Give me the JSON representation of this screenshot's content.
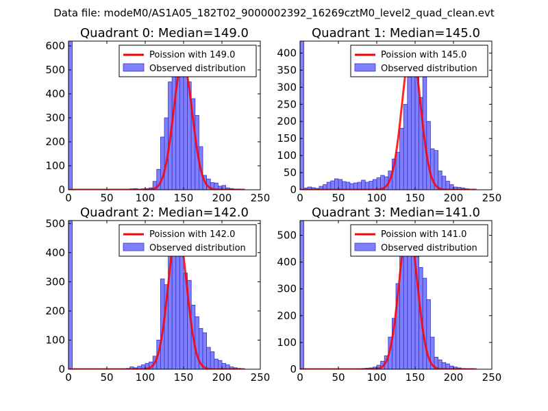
{
  "suptitle": "Data file: modeM0/AS1A05_182T02_9000002392_16269cztM0_level2_quad_clean.evt",
  "colors": {
    "bar_fill": "#8080ff",
    "bar_edge": "#3333cc",
    "poisson": "#ff0000",
    "axes": "#000000"
  },
  "chart_data": [
    {
      "type": "bar",
      "title": "Quadrant 0: Median=149.0",
      "xlim": [
        0,
        250
      ],
      "ylim": [
        0,
        620
      ],
      "xticks": [
        "0",
        "50",
        "100",
        "150",
        "200",
        "250"
      ],
      "yticks": [
        "0",
        "100",
        "200",
        "300",
        "400",
        "500",
        "600"
      ],
      "ytick_values": [
        0,
        100,
        200,
        300,
        400,
        500,
        600
      ],
      "median": 149.0,
      "legend": [
        "Poission with 149.0",
        "Observed distribution"
      ],
      "bin_width": 5,
      "bins": [
        [
          0,
          620
        ],
        [
          5,
          0
        ],
        [
          10,
          0
        ],
        [
          15,
          0
        ],
        [
          20,
          0
        ],
        [
          25,
          0
        ],
        [
          30,
          0
        ],
        [
          35,
          0
        ],
        [
          40,
          0
        ],
        [
          45,
          0
        ],
        [
          50,
          0
        ],
        [
          55,
          0
        ],
        [
          60,
          0
        ],
        [
          65,
          0
        ],
        [
          70,
          0
        ],
        [
          75,
          0
        ],
        [
          80,
          4
        ],
        [
          85,
          5
        ],
        [
          90,
          3
        ],
        [
          95,
          4
        ],
        [
          100,
          5
        ],
        [
          105,
          8
        ],
        [
          110,
          35
        ],
        [
          115,
          85
        ],
        [
          120,
          220
        ],
        [
          125,
          300
        ],
        [
          130,
          450
        ],
        [
          135,
          560
        ],
        [
          140,
          570
        ],
        [
          145,
          560
        ],
        [
          150,
          540
        ],
        [
          155,
          450
        ],
        [
          160,
          380
        ],
        [
          165,
          310
        ],
        [
          170,
          180
        ],
        [
          175,
          60
        ],
        [
          180,
          45
        ],
        [
          185,
          30
        ],
        [
          190,
          28
        ],
        [
          195,
          15
        ],
        [
          200,
          18
        ],
        [
          205,
          8
        ],
        [
          210,
          5
        ],
        [
          215,
          3
        ],
        [
          220,
          3
        ],
        [
          225,
          0
        ]
      ],
      "poisson_peak": 535
    },
    {
      "type": "bar",
      "title": "Quadrant 1: Median=145.0",
      "xlim": [
        0,
        250
      ],
      "ylim": [
        0,
        435
      ],
      "xticks": [
        "0",
        "50",
        "100",
        "150",
        "200",
        "250"
      ],
      "yticks": [
        "0",
        "50",
        "100",
        "150",
        "200",
        "250",
        "300",
        "350",
        "400"
      ],
      "ytick_values": [
        0,
        50,
        100,
        150,
        200,
        250,
        300,
        350,
        400
      ],
      "median": 145.0,
      "legend": [
        "Poission with 145.0",
        "Observed distribution"
      ],
      "bin_width": 5,
      "bins": [
        [
          0,
          435
        ],
        [
          5,
          5
        ],
        [
          10,
          8
        ],
        [
          15,
          6
        ],
        [
          20,
          4
        ],
        [
          25,
          10
        ],
        [
          30,
          15
        ],
        [
          35,
          22
        ],
        [
          40,
          26
        ],
        [
          45,
          32
        ],
        [
          50,
          30
        ],
        [
          55,
          24
        ],
        [
          60,
          22
        ],
        [
          65,
          18
        ],
        [
          70,
          20
        ],
        [
          75,
          22
        ],
        [
          80,
          28
        ],
        [
          85,
          22
        ],
        [
          90,
          25
        ],
        [
          95,
          30
        ],
        [
          100,
          35
        ],
        [
          105,
          42
        ],
        [
          110,
          38
        ],
        [
          115,
          55
        ],
        [
          120,
          90
        ],
        [
          125,
          110
        ],
        [
          130,
          180
        ],
        [
          135,
          250
        ],
        [
          140,
          330
        ],
        [
          145,
          400
        ],
        [
          150,
          330
        ],
        [
          155,
          270
        ],
        [
          160,
          330
        ],
        [
          165,
          200
        ],
        [
          170,
          120
        ],
        [
          175,
          115
        ],
        [
          180,
          55
        ],
        [
          185,
          40
        ],
        [
          190,
          25
        ],
        [
          195,
          15
        ],
        [
          200,
          8
        ],
        [
          205,
          7
        ],
        [
          210,
          5
        ],
        [
          215,
          3
        ]
      ],
      "poisson_peak": 415
    },
    {
      "type": "bar",
      "title": "Quadrant 2: Median=142.0",
      "xlim": [
        0,
        250
      ],
      "ylim": [
        0,
        510
      ],
      "xticks": [
        "0",
        "50",
        "100",
        "150",
        "200",
        "250"
      ],
      "yticks": [
        "0",
        "100",
        "200",
        "300",
        "400",
        "500"
      ],
      "ytick_values": [
        0,
        100,
        200,
        300,
        400,
        500
      ],
      "median": 142.0,
      "legend": [
        "Poission with 142.0",
        "Observed distribution"
      ],
      "bin_width": 5,
      "bins": [
        [
          0,
          510
        ],
        [
          5,
          0
        ],
        [
          10,
          0
        ],
        [
          15,
          0
        ],
        [
          20,
          0
        ],
        [
          25,
          0
        ],
        [
          30,
          0
        ],
        [
          35,
          0
        ],
        [
          40,
          0
        ],
        [
          45,
          0
        ],
        [
          50,
          0
        ],
        [
          55,
          0
        ],
        [
          60,
          0
        ],
        [
          65,
          0
        ],
        [
          70,
          0
        ],
        [
          75,
          3
        ],
        [
          80,
          8
        ],
        [
          85,
          5
        ],
        [
          90,
          10
        ],
        [
          95,
          15
        ],
        [
          100,
          20
        ],
        [
          105,
          25
        ],
        [
          110,
          45
        ],
        [
          115,
          100
        ],
        [
          120,
          310
        ],
        [
          125,
          290
        ],
        [
          130,
          400
        ],
        [
          135,
          470
        ],
        [
          140,
          480
        ],
        [
          145,
          470
        ],
        [
          150,
          330
        ],
        [
          155,
          305
        ],
        [
          160,
          220
        ],
        [
          165,
          180
        ],
        [
          170,
          140
        ],
        [
          175,
          125
        ],
        [
          180,
          75
        ],
        [
          185,
          60
        ],
        [
          190,
          35
        ],
        [
          195,
          30
        ],
        [
          200,
          20
        ],
        [
          205,
          15
        ],
        [
          210,
          8
        ],
        [
          215,
          5
        ],
        [
          220,
          3
        ]
      ],
      "poisson_peak": 485
    },
    {
      "type": "bar",
      "title": "Quadrant 3: Median=141.0",
      "xlim": [
        0,
        250
      ],
      "ylim": [
        0,
        555
      ],
      "xticks": [
        "0",
        "50",
        "100",
        "150",
        "200",
        "250"
      ],
      "yticks": [
        "0",
        "100",
        "200",
        "300",
        "400",
        "500"
      ],
      "ytick_values": [
        0,
        100,
        200,
        300,
        400,
        500
      ],
      "median": 141.0,
      "legend": [
        "Poission with 141.0",
        "Observed distribution"
      ],
      "bin_width": 5,
      "bins": [
        [
          0,
          555
        ],
        [
          5,
          0
        ],
        [
          10,
          0
        ],
        [
          15,
          0
        ],
        [
          20,
          0
        ],
        [
          25,
          0
        ],
        [
          30,
          0
        ],
        [
          35,
          0
        ],
        [
          40,
          0
        ],
        [
          45,
          0
        ],
        [
          50,
          0
        ],
        [
          55,
          0
        ],
        [
          60,
          0
        ],
        [
          65,
          0
        ],
        [
          70,
          0
        ],
        [
          75,
          0
        ],
        [
          80,
          3
        ],
        [
          85,
          4
        ],
        [
          90,
          5
        ],
        [
          95,
          8
        ],
        [
          100,
          15
        ],
        [
          105,
          30
        ],
        [
          110,
          50
        ],
        [
          115,
          120
        ],
        [
          120,
          190
        ],
        [
          125,
          320
        ],
        [
          130,
          440
        ],
        [
          135,
          500
        ],
        [
          140,
          530
        ],
        [
          145,
          480
        ],
        [
          150,
          420
        ],
        [
          155,
          380
        ],
        [
          160,
          340
        ],
        [
          165,
          260
        ],
        [
          170,
          120
        ],
        [
          175,
          45
        ],
        [
          180,
          35
        ],
        [
          185,
          25
        ],
        [
          190,
          20
        ],
        [
          195,
          12
        ],
        [
          200,
          8
        ],
        [
          205,
          5
        ],
        [
          210,
          3
        ],
        [
          215,
          2
        ],
        [
          220,
          2
        ],
        [
          225,
          0
        ],
        [
          230,
          0
        ]
      ],
      "poisson_peak": 535
    }
  ]
}
